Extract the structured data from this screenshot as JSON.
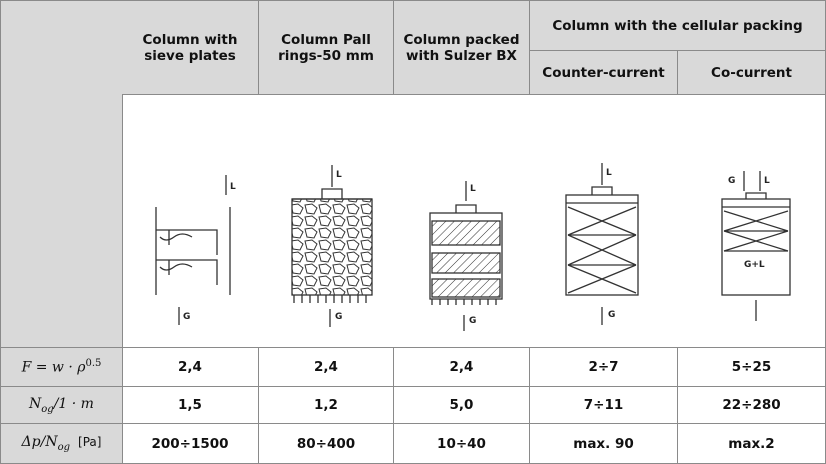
{
  "header": {
    "columns": [
      [
        "Column with",
        "sieve plates"
      ],
      [
        "Column Pall",
        "rings-50 mm"
      ],
      [
        "Column packed",
        "with Sulzer BX"
      ]
    ],
    "group": "Column with the cellular packing",
    "subcolumns": [
      "Counter-current",
      "Co-current"
    ]
  },
  "sketch_labels": [
    [
      "L",
      "G"
    ],
    [
      "L",
      "G"
    ],
    [
      "L",
      "G"
    ],
    [
      "L",
      "G"
    ],
    [
      "G",
      "L",
      "G+L"
    ]
  ],
  "rows": [
    {
      "label": [
        "F = w · ρ",
        "0.5"
      ],
      "values": [
        "2,4",
        "2,4",
        "2,4",
        "2÷7",
        "5÷25"
      ]
    },
    {
      "label": [
        "N",
        "og",
        "/1 · m"
      ],
      "values": [
        "1,5",
        "1,2",
        "5,0",
        "7÷11",
        "22÷280"
      ]
    },
    {
      "label": [
        "Δp/N",
        "og",
        "[Pa]"
      ],
      "values": [
        "200÷1500",
        "80÷400",
        "10÷40",
        "max. 90",
        "max.2"
      ]
    }
  ]
}
